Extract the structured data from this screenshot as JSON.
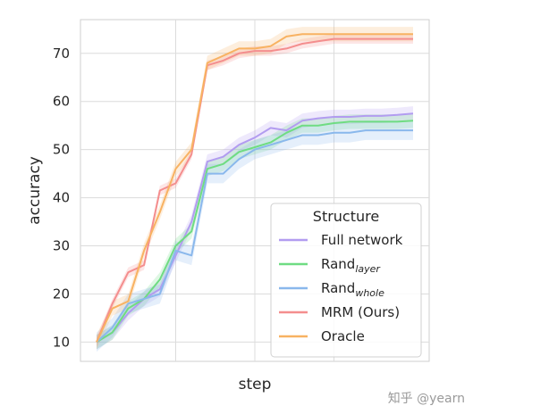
{
  "chart_data": {
    "type": "line",
    "xlabel": "step",
    "ylabel": "accuracy",
    "ylim": [
      6,
      77
    ],
    "yticks": [
      10,
      20,
      30,
      40,
      50,
      60,
      70
    ],
    "grid": true,
    "legend": {
      "title": "Structure",
      "placement": "lower-right"
    },
    "x": [
      0,
      1,
      2,
      3,
      4,
      5,
      6,
      7,
      8,
      9,
      10,
      11,
      12,
      13,
      14,
      15,
      16,
      17,
      18,
      19,
      20
    ],
    "series": [
      {
        "name": "Full network",
        "label_main": "Full network",
        "label_sub": "",
        "color": "#b29cf0",
        "values": [
          10,
          12,
          16,
          19,
          21,
          28,
          35,
          47.5,
          48.5,
          51,
          52.5,
          54.5,
          54,
          56,
          56.5,
          56.8,
          56.8,
          57,
          57,
          57.2,
          57.5
        ],
        "band": 1.5
      },
      {
        "name": "Rand_layer",
        "label_main": "Rand",
        "label_sub": "layer",
        "color": "#6fdc82",
        "values": [
          10,
          12,
          17,
          19,
          23,
          30,
          33,
          46,
          47,
          49.5,
          50.5,
          51.5,
          53.5,
          55,
          55,
          55.5,
          55.8,
          55.8,
          55.8,
          55.8,
          56
        ],
        "band": 1.5
      },
      {
        "name": "Rand_whole",
        "label_main": "Rand",
        "label_sub": "whole",
        "color": "#8ab8ec",
        "values": [
          10,
          13,
          18,
          19,
          20,
          29,
          28,
          45,
          45,
          48,
          50,
          51,
          52,
          53,
          53,
          53.5,
          53.5,
          54,
          54,
          54,
          54
        ],
        "band": 2
      },
      {
        "name": "MRM (Ours)",
        "label_main": "MRM (Ours)",
        "label_sub": "",
        "color": "#f48e8e",
        "values": [
          10,
          18,
          24.5,
          26,
          41.5,
          43,
          49,
          67.5,
          68.5,
          70,
          70.5,
          70.5,
          71,
          72,
          72.5,
          73,
          73,
          73,
          73,
          73,
          73
        ],
        "band": 1
      },
      {
        "name": "Oracle",
        "label_main": "Oracle",
        "label_sub": "",
        "color": "#f8b262",
        "values": [
          10,
          17,
          18.5,
          29,
          37,
          46,
          50,
          68,
          69.5,
          71,
          71,
          71.5,
          73.5,
          74,
          74,
          74,
          74,
          74,
          74,
          74,
          74
        ],
        "band": 1.5
      }
    ]
  },
  "watermark": "知乎 @yearn"
}
